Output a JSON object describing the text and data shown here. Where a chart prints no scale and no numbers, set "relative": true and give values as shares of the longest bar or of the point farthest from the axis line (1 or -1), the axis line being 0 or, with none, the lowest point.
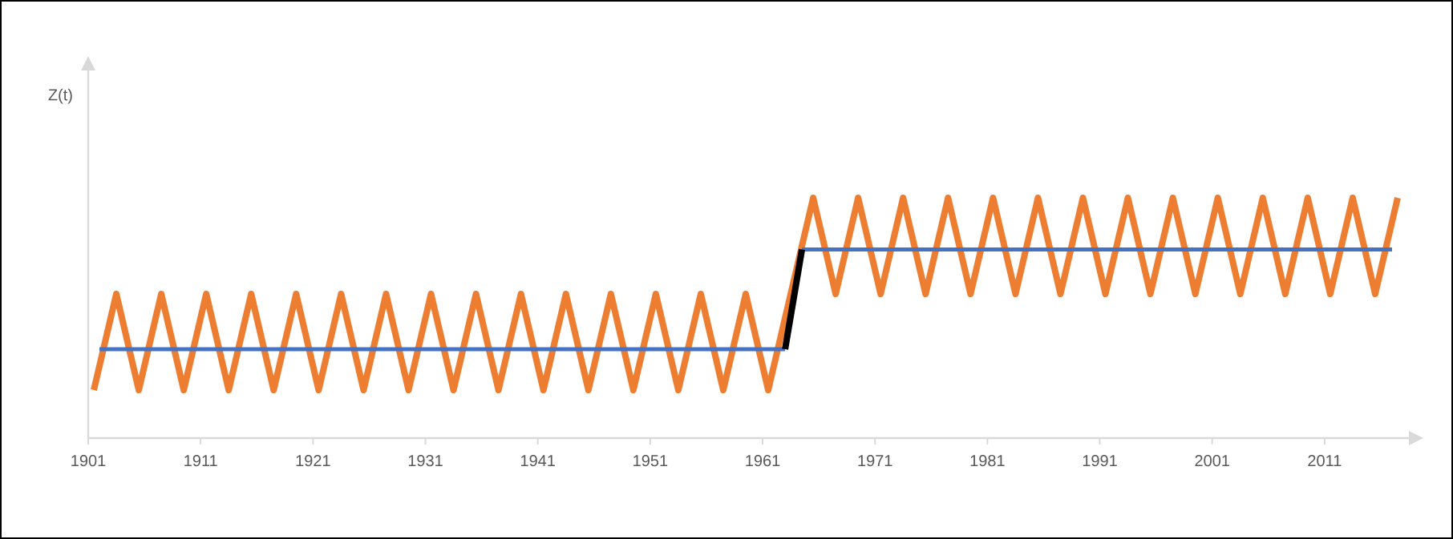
{
  "chart_data": {
    "type": "line",
    "annotations": [
      "Z(t)"
    ],
    "relative": true,
    "xlim": [
      1901,
      2018.5
    ],
    "xticks": [
      1901,
      1911,
      1921,
      1931,
      1941,
      1951,
      1961,
      1971,
      1981,
      1991,
      2001,
      2011
    ],
    "series": [
      {
        "color": "#ed7d31",
        "x": [
          1901.5,
          1903.5,
          1905.5,
          1907.5,
          1909.5,
          1911.5,
          1913.5,
          1915.5,
          1917.5,
          1919.5,
          1921.5,
          1923.5,
          1925.5,
          1927.5,
          1929.5,
          1931.5,
          1933.5,
          1935.5,
          1937.5,
          1939.5,
          1941.5,
          1943.5,
          1945.5,
          1947.5,
          1949.5,
          1951.5,
          1953.5,
          1955.5,
          1957.5,
          1959.5,
          1961.5,
          1965.5,
          1967.5,
          1969.5,
          1971.5,
          1973.5,
          1975.5,
          1977.5,
          1979.5,
          1981.5,
          1983.5,
          1985.5,
          1987.5,
          1989.5,
          1991.5,
          1993.5,
          1995.5,
          1997.5,
          1999.5,
          2001.5,
          2003.5,
          2005.5,
          2007.5,
          2009.5,
          2011.5,
          2013.5,
          2015.5,
          2017.5
        ],
        "values": [
          0.2,
          0.6,
          0.2,
          0.6,
          0.2,
          0.6,
          0.2,
          0.6,
          0.2,
          0.6,
          0.2,
          0.6,
          0.2,
          0.6,
          0.2,
          0.6,
          0.2,
          0.6,
          0.2,
          0.6,
          0.2,
          0.6,
          0.2,
          0.6,
          0.2,
          0.6,
          0.2,
          0.6,
          0.2,
          0.6,
          0.2,
          1,
          0.6,
          1,
          0.6,
          1,
          0.6,
          1,
          0.6,
          1,
          0.6,
          1,
          0.6,
          1,
          0.6,
          1,
          0.6,
          1,
          0.6,
          1,
          0.6,
          1,
          0.6,
          1,
          0.6,
          1,
          0.6,
          1
        ]
      },
      {
        "color": "#4472c4",
        "x": [
          1902,
          1963,
          1964,
          1964.5,
          2017
        ],
        "values": [
          0.37,
          0.37,
          null,
          0.785,
          0.785
        ]
      },
      {
        "color": "#000000",
        "x": [
          1963,
          1964.5
        ],
        "values": [
          0.37,
          0.785
        ]
      }
    ]
  }
}
